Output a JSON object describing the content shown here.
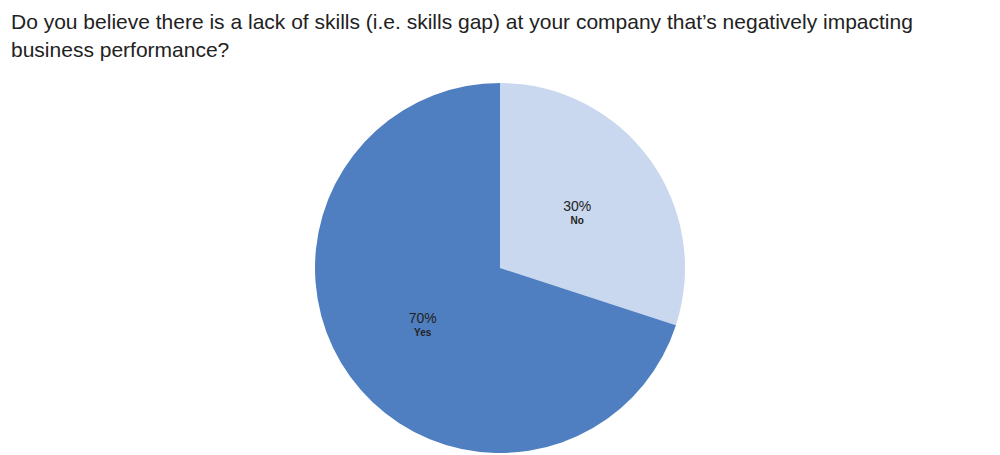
{
  "chart_data": {
    "type": "pie",
    "title": "Do you believe there is a lack of skills (i.e. skills gap) at your company that’s negatively impacting business performance?",
    "categories": [
      "No",
      "Yes"
    ],
    "values": [
      30,
      70
    ],
    "value_labels": [
      "30%",
      "70%"
    ],
    "colors": [
      "#c9d8ef",
      "#4f7fc0"
    ],
    "data_labels": true,
    "legend": false
  }
}
